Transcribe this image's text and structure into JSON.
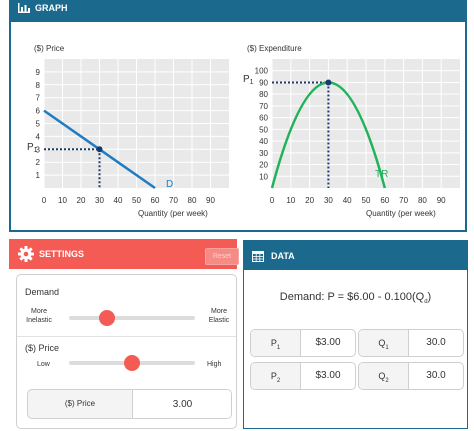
{
  "graph": {
    "title": "GRAPH",
    "left_chart": {
      "ylabel": "($) Price",
      "xlabel": "Quantity (per week)",
      "y_ticks": [
        "1",
        "2",
        "3",
        "4",
        "5",
        "6",
        "7",
        "8",
        "9"
      ],
      "x_ticks": [
        "0",
        "10",
        "20",
        "30",
        "40",
        "50",
        "60",
        "70",
        "80",
        "90"
      ],
      "marker_label": "P",
      "marker_sub": "1",
      "curve_label": "D"
    },
    "right_chart": {
      "ylabel": "($) Expenditure",
      "xlabel": "Quantity (per week)",
      "y_ticks": [
        "10",
        "20",
        "30",
        "40",
        "50",
        "60",
        "70",
        "80",
        "90",
        "100"
      ],
      "x_ticks": [
        "0",
        "10",
        "20",
        "30",
        "40",
        "50",
        "60",
        "70",
        "80",
        "90"
      ],
      "marker_label": "P",
      "marker_sub": "1",
      "curve_label": "TR"
    },
    "colors": {
      "demand": "#1f7cc1",
      "tr": "#22b25a",
      "header": "#1b6a8e"
    }
  },
  "chart_data": [
    {
      "type": "line",
      "title": "",
      "xlabel": "Quantity (per week)",
      "ylabel": "($) Price",
      "xlim": [
        0,
        100
      ],
      "ylim": [
        0,
        10
      ],
      "series": [
        {
          "name": "D",
          "x": [
            0,
            60
          ],
          "y": [
            6,
            0
          ]
        }
      ],
      "marker": {
        "x": 30,
        "y": 3,
        "label": "P1"
      },
      "grid": true
    },
    {
      "type": "line",
      "title": "",
      "xlabel": "Quantity (per week)",
      "ylabel": "($) Expenditure",
      "xlim": [
        0,
        100
      ],
      "ylim": [
        0,
        110
      ],
      "series": [
        {
          "name": "TR",
          "x": [
            0,
            10,
            20,
            30,
            40,
            50,
            60
          ],
          "y": [
            0,
            50,
            80,
            90,
            80,
            50,
            0
          ]
        }
      ],
      "marker": {
        "x": 30,
        "y": 90,
        "label": "P1"
      },
      "grid": true
    }
  ],
  "settings": {
    "title": "SETTINGS",
    "reset_label": "Reset",
    "demand": {
      "title": "Demand",
      "left_line1": "More",
      "left_line2": "Inelastic",
      "right_line1": "More",
      "right_line2": "Elastic",
      "position": 0.3
    },
    "price": {
      "title": "($) Price",
      "left": "Low",
      "right": "High",
      "position": 0.5
    },
    "price_input": {
      "label": "($) Price",
      "value": "3.00"
    }
  },
  "data": {
    "title": "DATA",
    "equation_prefix": "Demand: P = $6.00 - 0.100(Q",
    "equation_sub": "d",
    "equation_suffix": ")",
    "cells": [
      {
        "key": "P",
        "sub": "1",
        "value": "$3.00"
      },
      {
        "key": "Q",
        "sub": "1",
        "value": "30.0"
      },
      {
        "key": "P",
        "sub": "2",
        "value": "$3.00"
      },
      {
        "key": "Q",
        "sub": "2",
        "value": "30.0"
      }
    ]
  }
}
